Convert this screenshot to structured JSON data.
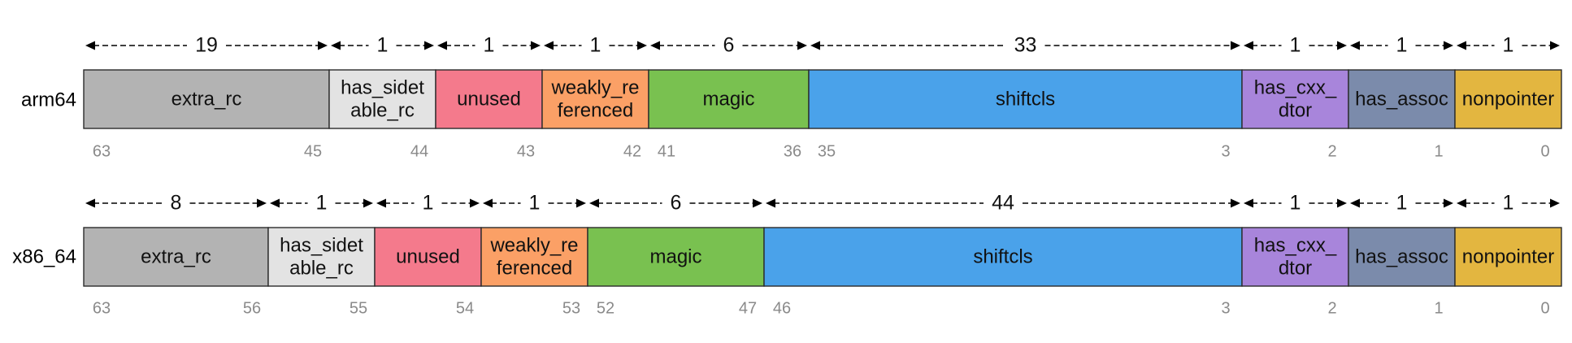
{
  "colors": {
    "extra_rc": "#b3b3b3",
    "has_sidetable_rc": "#e3e3e3",
    "unused": "#f47a8c",
    "weakly_referenced": "#fba066",
    "magic": "#79c150",
    "shiftcls": "#4aa2ea",
    "has_cxx_dtor": "#a885db",
    "has_assoc": "#7b8bab",
    "nonpointer": "#e3b640"
  },
  "rows": [
    {
      "label": "arm64",
      "fields": [
        {
          "key": "extra_rc",
          "name": [
            "extra_rc"
          ],
          "width": "19",
          "bits": [
            "63",
            "45"
          ]
        },
        {
          "key": "has_sidetable_rc",
          "name": [
            "has_sidet",
            "able_rc"
          ],
          "width": "1",
          "bits": [
            "44"
          ]
        },
        {
          "key": "unused",
          "name": [
            "unused"
          ],
          "width": "1",
          "bits": [
            "43"
          ]
        },
        {
          "key": "weakly_referenced",
          "name": [
            "weakly_re",
            "ferenced"
          ],
          "width": "1",
          "bits": [
            "42"
          ]
        },
        {
          "key": "magic",
          "name": [
            "magic"
          ],
          "width": "6",
          "bits": [
            "41",
            "36"
          ]
        },
        {
          "key": "shiftcls",
          "name": [
            "shiftcls"
          ],
          "width": "33",
          "bits": [
            "35",
            "3"
          ]
        },
        {
          "key": "has_cxx_dtor",
          "name": [
            "has_cxx_",
            "dtor"
          ],
          "width": "1",
          "bits": [
            "2"
          ]
        },
        {
          "key": "has_assoc",
          "name": [
            "has_assoc"
          ],
          "width": "1",
          "bits": [
            "1"
          ]
        },
        {
          "key": "nonpointer",
          "name": [
            "nonpointer"
          ],
          "width": "1",
          "bits": [
            "0"
          ]
        }
      ]
    },
    {
      "label": "x86_64",
      "fields": [
        {
          "key": "extra_rc",
          "name": [
            "extra_rc"
          ],
          "width": "8",
          "bits": [
            "63",
            "56"
          ]
        },
        {
          "key": "has_sidetable_rc",
          "name": [
            "has_sidet",
            "able_rc"
          ],
          "width": "1",
          "bits": [
            "55"
          ]
        },
        {
          "key": "unused",
          "name": [
            "unused"
          ],
          "width": "1",
          "bits": [
            "54"
          ]
        },
        {
          "key": "weakly_referenced",
          "name": [
            "weakly_re",
            "ferenced"
          ],
          "width": "1",
          "bits": [
            "53"
          ]
        },
        {
          "key": "magic",
          "name": [
            "magic"
          ],
          "width": "6",
          "bits": [
            "52",
            "47"
          ]
        },
        {
          "key": "shiftcls",
          "name": [
            "shiftcls"
          ],
          "width": "44",
          "bits": [
            "46",
            "3"
          ]
        },
        {
          "key": "has_cxx_dtor",
          "name": [
            "has_cxx_",
            "dtor"
          ],
          "width": "1",
          "bits": [
            "2"
          ]
        },
        {
          "key": "has_assoc",
          "name": [
            "has_assoc"
          ],
          "width": "1",
          "bits": [
            "1"
          ]
        },
        {
          "key": "nonpointer",
          "name": [
            "nonpointer"
          ],
          "width": "1",
          "bits": [
            "0"
          ]
        }
      ]
    }
  ]
}
